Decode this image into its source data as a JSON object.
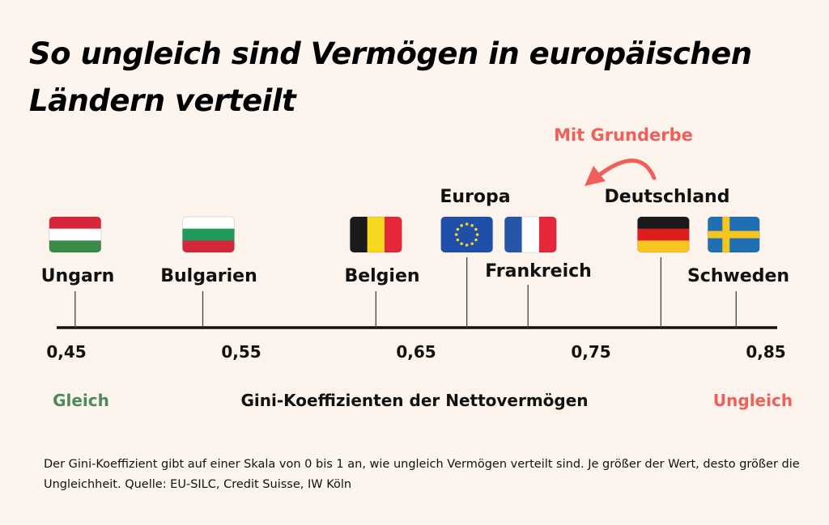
{
  "title": "So ungleich sind Vermögen in europäischen Ländern verteilt",
  "footnote": "Der Gini-Koeffizient gibt auf einer Skala von 0 bis 1 an, wie ungleich Vermögen verteilt sind. Je größer der Wert, desto größer die Ungleichheit. Quelle: EU-SILC, Credit Suisse, IW Köln",
  "colors": {
    "background": "#fdf4ee",
    "axis": "#111111",
    "equal": "#4a8a5c",
    "unequal": "#f0605a",
    "annotation": "#f0605a"
  },
  "chart_data": {
    "type": "scatter",
    "title": "So ungleich sind Vermögen in europäischen Ländern verteilt",
    "xlabel": "Gini-Koeffizienten der Nettovermögen",
    "xlim": [
      0.44,
      0.87
    ],
    "ticks": [
      0.45,
      0.55,
      0.65,
      0.75,
      0.85
    ],
    "tick_labels": [
      "0,45",
      "0,55",
      "0,65",
      "0,75",
      "0,85"
    ],
    "left_label": "Gleich",
    "right_label": "Ungleich",
    "grid": false,
    "points": [
      {
        "name": "Ungarn",
        "flag": "hungary",
        "value": 0.455,
        "row": "low"
      },
      {
        "name": "Bulgarien",
        "flag": "bulgaria",
        "value": 0.528,
        "row": "low"
      },
      {
        "name": "Belgien",
        "flag": "belgium",
        "value": 0.627,
        "row": "low"
      },
      {
        "name": "Europa",
        "flag": "eu",
        "value": 0.679,
        "row": "high"
      },
      {
        "name": "Frankreich",
        "flag": "france",
        "value": 0.714,
        "row": "mid"
      },
      {
        "name": "Deutschland",
        "flag": "germany",
        "value": 0.79,
        "row": "high"
      },
      {
        "name": "Schweden",
        "flag": "sweden",
        "value": 0.833,
        "row": "low"
      }
    ],
    "annotation": {
      "text": "Mit Grunderbe",
      "from": "Deutschland",
      "direction": "left",
      "icon": "curved-arrow-icon"
    }
  }
}
